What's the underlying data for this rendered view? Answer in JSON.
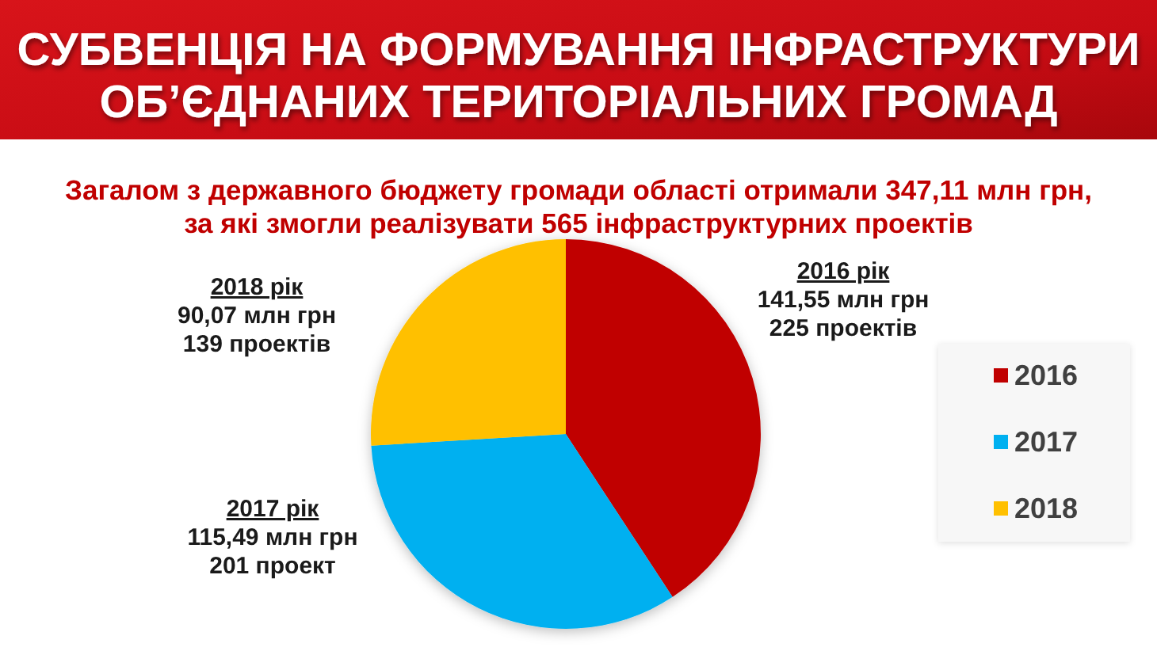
{
  "chart_data": {
    "type": "pie",
    "title": "СУБВЕНЦІЯ НА ФОРМУВАННЯ ІНФРАСТРУКТУРИ\nОБ’ЄДНАНИХ ТЕРИТОРІАЛЬНИХ ГРОМАД",
    "subtitle": "Загалом з державного бюджету громади області отримали 347,11 млн грн,\nза які змогли реалізувати 565 інфраструктурних проектів",
    "categories": [
      "2016",
      "2017",
      "2018"
    ],
    "values": [
      141.55,
      115.49,
      90.07
    ],
    "colors": [
      "#c00000",
      "#00b0f0",
      "#ffc000"
    ],
    "value_labels": [
      "2016 рік\n141,55 млн грн\n225 проектів",
      "2017 рік\n115,49 млн грн\n201 проект",
      "2018 рік\n90,07 млн грн\n139 проектів"
    ],
    "legend": "right"
  }
}
